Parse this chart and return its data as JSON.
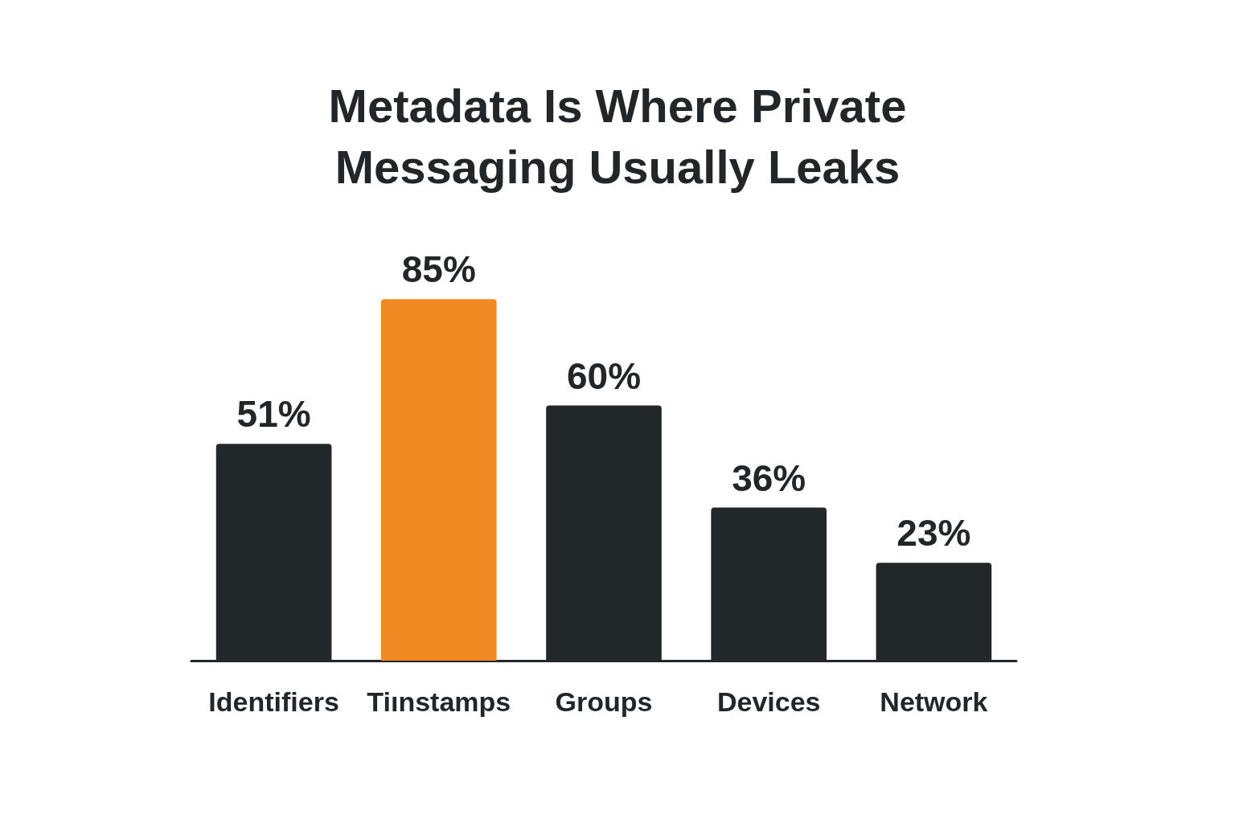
{
  "chart_data": {
    "type": "bar",
    "title": "Metadata Is Where Private\nMessaging Usually Leaks",
    "categories": [
      "Identifiers",
      "Tiınstamps",
      "Groups",
      "Devices",
      "Network"
    ],
    "values": [
      51,
      85,
      60,
      36,
      23
    ],
    "colors": [
      "#22272a",
      "#f28a24",
      "#22272a",
      "#22272a",
      "#22272a"
    ],
    "value_labels": [
      "51%",
      "85%",
      "60%",
      "36%",
      "23%"
    ]
  }
}
